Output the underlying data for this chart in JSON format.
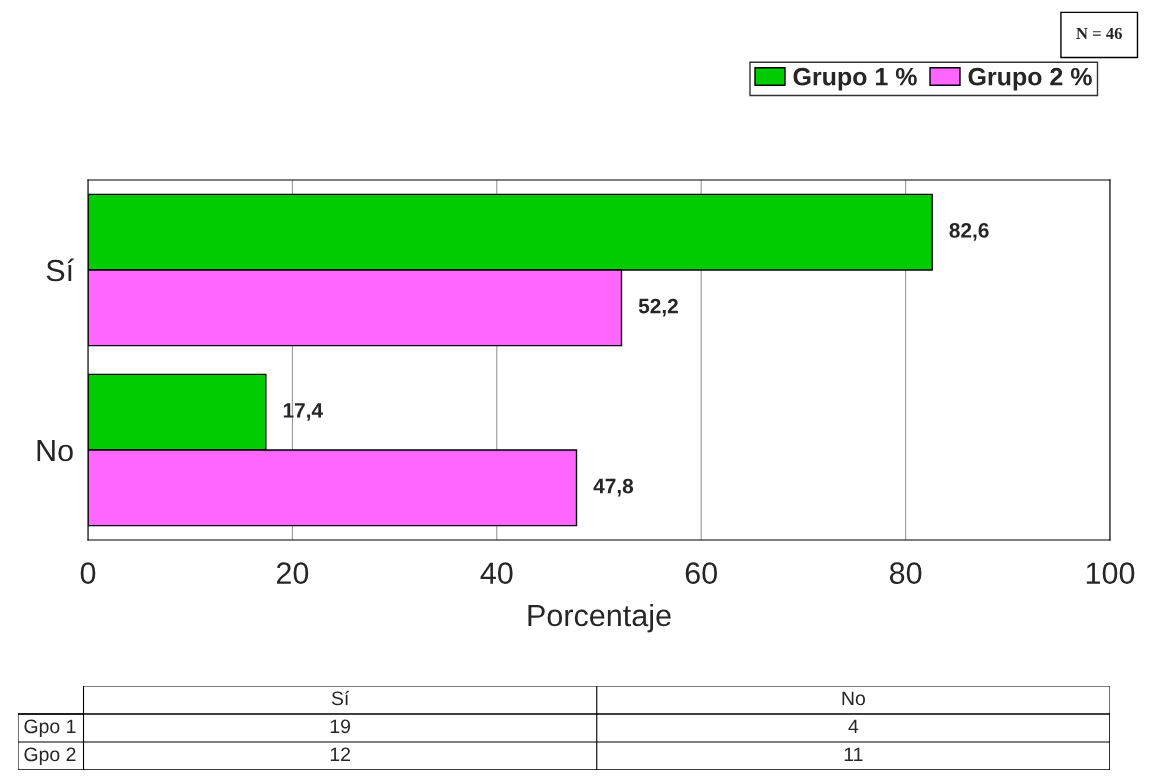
{
  "chart_data": [
    {
      "type": "bar",
      "orientation": "horizontal",
      "xlabel": "Porcentaje",
      "categories": [
        "Sí",
        "No"
      ],
      "series": [
        {
          "name": "Grupo 1 %",
          "color": "#00cc00",
          "values": [
            82.6,
            17.4
          ],
          "value_labels": [
            "82,6",
            "17,4"
          ]
        },
        {
          "name": "Grupo 2 %",
          "color": "#ff66ff",
          "values": [
            52.2,
            47.8
          ],
          "value_labels": [
            "52,2",
            "47,8"
          ]
        }
      ],
      "xlim": [
        0,
        100
      ],
      "xticks": [
        0,
        20,
        40,
        60,
        80,
        100
      ],
      "grid": "x",
      "legend": "top right",
      "annotations": [
        "N = 46"
      ]
    },
    {
      "type": "other",
      "categories": [
        "Sí",
        "No"
      ],
      "y_categories": [
        "Gpo 1",
        "Gpo 2"
      ],
      "cell_labels": [
        [
          "19",
          "4"
        ],
        [
          "12",
          "11"
        ]
      ]
    }
  ]
}
